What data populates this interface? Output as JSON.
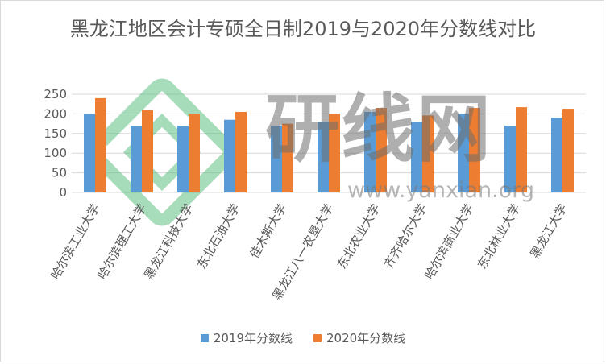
{
  "chart_data": {
    "type": "bar",
    "title": "黑龙江地区会计专硕全日制2019与2020年分数线对比",
    "categories": [
      "哈尔滨工业大学",
      "哈尔滨理工大学",
      "黑龙江科技大学",
      "东北石油大学",
      "佳木斯大学",
      "黑龙江八一农垦大学",
      "东北农业大学",
      "齐齐哈尔大学",
      "哈尔滨商业大学",
      "东北林业大学",
      "黑龙江大学"
    ],
    "series": [
      {
        "name": "2019年分数线",
        "color": "#5b9bd5",
        "values": [
          200,
          170,
          170,
          185,
          170,
          180,
          205,
          180,
          200,
          170,
          190
        ]
      },
      {
        "name": "2020年分数线",
        "color": "#ed7d31",
        "values": [
          240,
          210,
          200,
          205,
          175,
          200,
          215,
          196,
          215,
          217,
          213
        ]
      }
    ],
    "ylim": [
      0,
      250
    ],
    "yticks": [
      0,
      50,
      100,
      150,
      200,
      250
    ],
    "grid": true,
    "legend_position": "bottom"
  },
  "watermark": {
    "text": "研线网",
    "url": "www.yanxian.org"
  }
}
